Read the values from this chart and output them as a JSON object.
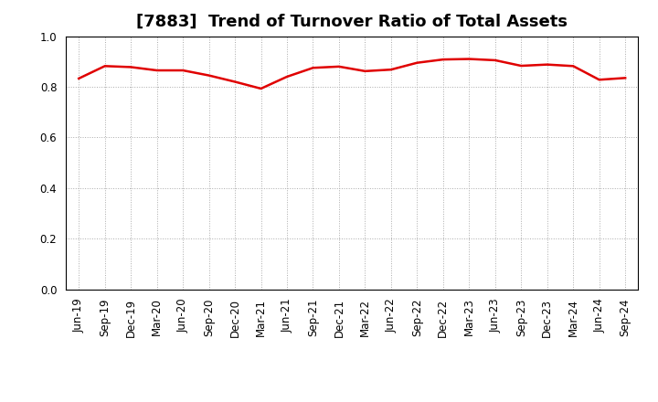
{
  "title": "[7883]  Trend of Turnover Ratio of Total Assets",
  "labels": [
    "Jun-19",
    "Sep-19",
    "Dec-19",
    "Mar-20",
    "Jun-20",
    "Sep-20",
    "Dec-20",
    "Mar-21",
    "Jun-21",
    "Sep-21",
    "Dec-21",
    "Mar-22",
    "Jun-22",
    "Sep-22",
    "Dec-22",
    "Mar-23",
    "Jun-23",
    "Sep-23",
    "Dec-23",
    "Mar-24",
    "Jun-24",
    "Sep-24"
  ],
  "values": [
    0.833,
    0.882,
    0.878,
    0.865,
    0.865,
    0.845,
    0.82,
    0.793,
    0.84,
    0.875,
    0.88,
    0.862,
    0.868,
    0.895,
    0.908,
    0.91,
    0.905,
    0.883,
    0.888,
    0.882,
    0.828,
    0.835
  ],
  "line_color": "#e00000",
  "line_width": 1.8,
  "ylim": [
    0.0,
    1.0
  ],
  "yticks": [
    0.0,
    0.2,
    0.4,
    0.6,
    0.8,
    1.0
  ],
  "grid_color": "#aaaaaa",
  "bg_color": "#ffffff",
  "title_fontsize": 13,
  "tick_fontsize": 8.5
}
